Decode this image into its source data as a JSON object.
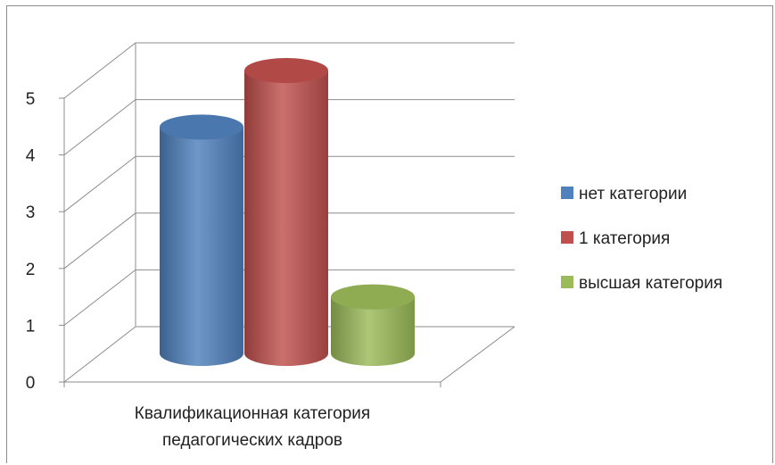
{
  "chart_data": {
    "type": "bar",
    "title": "",
    "xlabel": "",
    "ylabel": "",
    "categories": [
      "Квалификационная категория педагогических кадров"
    ],
    "category_label_lines": [
      "Квалификационная категория",
      "педагогических кадров"
    ],
    "ylim": [
      0,
      5
    ],
    "yticks": [
      "0",
      "1",
      "2",
      "3",
      "4",
      "5"
    ],
    "grid": true,
    "legend_position": "right",
    "series": [
      {
        "name": "нет категории",
        "values": [
          4
        ],
        "color": "#4f81bd"
      },
      {
        "name": "1 категория",
        "values": [
          5
        ],
        "color": "#c0504d"
      },
      {
        "name": "высшая категория",
        "values": [
          1
        ],
        "color": "#9bbb59"
      }
    ]
  }
}
